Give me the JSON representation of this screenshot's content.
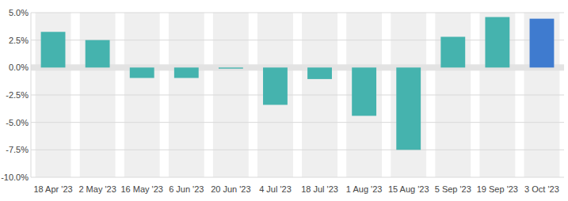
{
  "chart_data": {
    "type": "bar",
    "categories": [
      "18 Apr '23",
      "2 May '23",
      "16 May '23",
      "6 Jun '23",
      "20 Jun '23",
      "4 Jul '23",
      "18 Jul '23",
      "1 Aug '23",
      "15 Aug '23",
      "5 Sep '23",
      "19 Sep '23",
      "3 Oct '23"
    ],
    "values": [
      3.25,
      2.5,
      -0.95,
      -0.95,
      -0.1,
      -3.4,
      -1.05,
      -4.4,
      -7.5,
      2.8,
      4.6,
      4.45
    ],
    "colors": [
      "#45b3ae",
      "#45b3ae",
      "#45b3ae",
      "#45b3ae",
      "#45b3ae",
      "#45b3ae",
      "#45b3ae",
      "#45b3ae",
      "#45b3ae",
      "#45b3ae",
      "#45b3ae",
      "#3f7bcf"
    ],
    "ylim": [
      -10,
      5
    ],
    "yticks": [
      {
        "value": -10,
        "label": "-10.0%"
      },
      {
        "value": -7.5,
        "label": "-7.5%"
      },
      {
        "value": -5,
        "label": "-5.0%"
      },
      {
        "value": -2.5,
        "label": "-2.5%"
      },
      {
        "value": 0,
        "label": "0.0%"
      },
      {
        "value": 2.5,
        "label": "2.5%"
      },
      {
        "value": 5,
        "label": "5.0%"
      }
    ],
    "grid": true
  }
}
